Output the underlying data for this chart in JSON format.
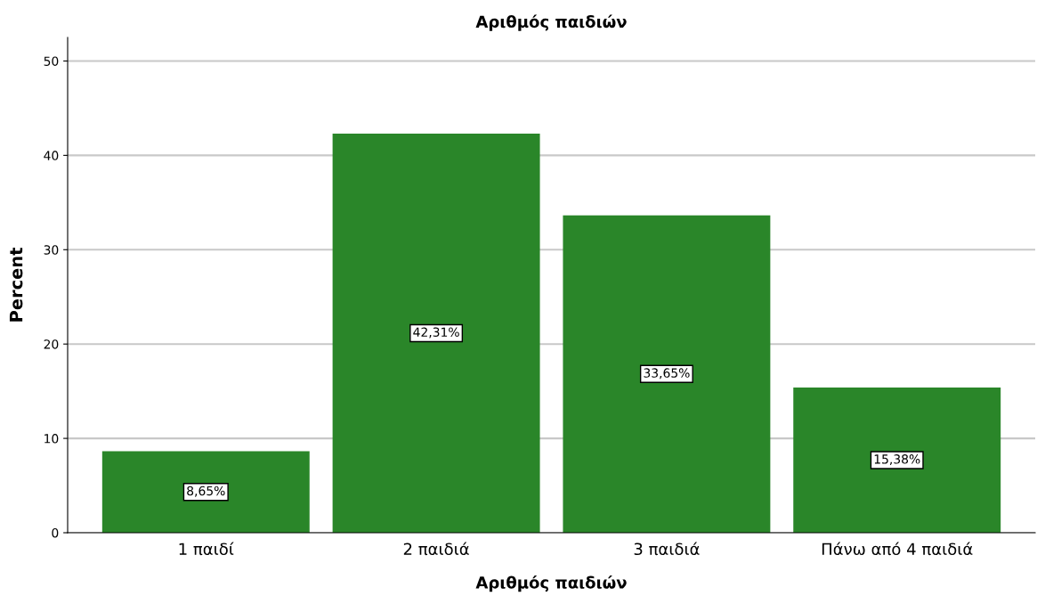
{
  "chart_data": {
    "type": "bar",
    "title": "Αριθμός παιδιών",
    "xlabel": "Αριθμός παιδιών",
    "ylabel": "Percent",
    "categories": [
      "1 παιδί",
      "2 παιδιά",
      "3 παιδιά",
      "Πάνω από 4 παιδιά"
    ],
    "values": [
      8.65,
      42.31,
      33.65,
      15.38
    ],
    "value_labels": [
      "8,65%",
      "42,31%",
      "33,65%",
      "15,38%"
    ],
    "color": "#2a8629",
    "ylim": [
      0,
      52.5
    ],
    "yticks": [
      0,
      10,
      20,
      30,
      40,
      50
    ],
    "grid": "y"
  }
}
